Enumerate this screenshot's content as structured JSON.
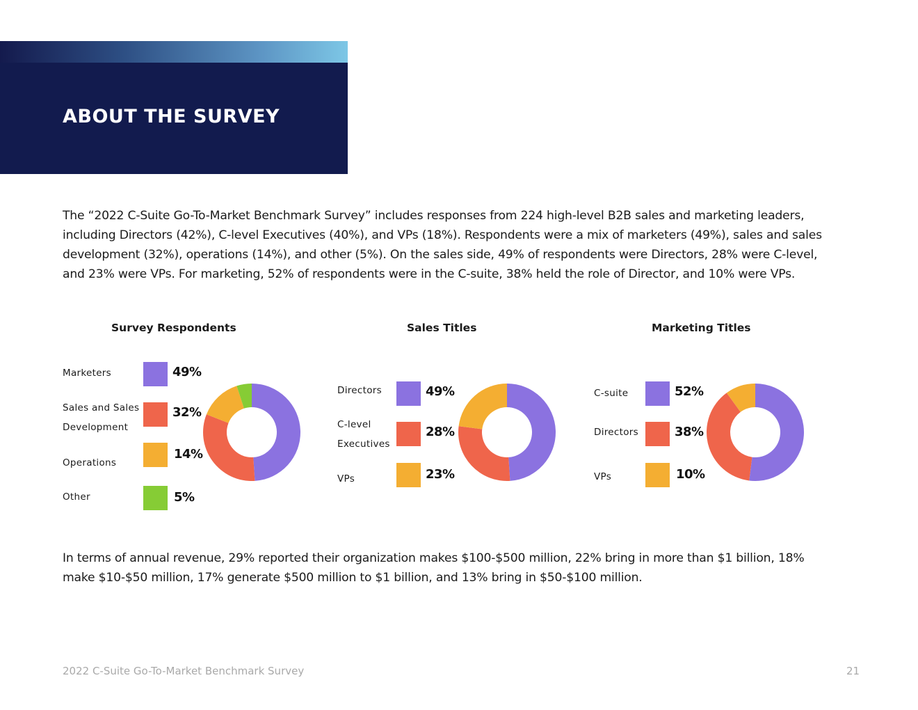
{
  "header": {
    "title": "ABOUT THE SURVEY"
  },
  "intro_text": "The “2022 C-Suite Go-To-Market Benchmark Survey” includes responses from 224 high-level B2B sales and marketing leaders, including Directors (42%), C-level Executives (40%), and VPs (18%). Respondents were a mix of marketers (49%), sales and sales development (32%), operations (14%), and other (5%). On the sales side, 49% of respondents were Directors, 28% were C-level, and 23% were VPs. For marketing, 52% of respondents were in the C-suite, 38% held the role of Director, and 10% were VPs.",
  "revenue_text": "In terms of annual revenue, 29% reported their organization makes $100-$500 million, 22% bring in more than $1 billion, 18% make $10-$50 million, 17% generate $500 million to $1 billion, and 13% bring in $50-$100 million.",
  "colors": {
    "purple": "#8b72e0",
    "red": "#ef654b",
    "yellow": "#f4ae32",
    "green": "#86cc35",
    "navy": "#121b4e"
  },
  "chart_data": [
    {
      "type": "pie",
      "title": "Survey Respondents",
      "categories": [
        "Marketers",
        "Sales and Sales Development",
        "Operations",
        "Other"
      ],
      "values": [
        49,
        32,
        14,
        5
      ],
      "labels": [
        "49%",
        "32%",
        "14%",
        "5%"
      ],
      "colors": [
        "#8b72e0",
        "#ef654b",
        "#f4ae32",
        "#86cc35"
      ]
    },
    {
      "type": "pie",
      "title": "Sales Titles",
      "categories": [
        "Directors",
        "C-level Executives",
        "VPs"
      ],
      "values": [
        49,
        28,
        23
      ],
      "labels": [
        "49%",
        "28%",
        "23%"
      ],
      "colors": [
        "#8b72e0",
        "#ef654b",
        "#f4ae32"
      ]
    },
    {
      "type": "pie",
      "title": "Marketing Titles",
      "categories": [
        "C-suite",
        "Directors",
        "VPs"
      ],
      "values": [
        52,
        38,
        10
      ],
      "labels": [
        "52%",
        "38%",
        "10%"
      ],
      "colors": [
        "#8b72e0",
        "#ef654b",
        "#f4ae32"
      ]
    }
  ],
  "footer": {
    "report_title": "2022 C-Suite Go-To-Market Benchmark Survey",
    "page_number": "21"
  }
}
